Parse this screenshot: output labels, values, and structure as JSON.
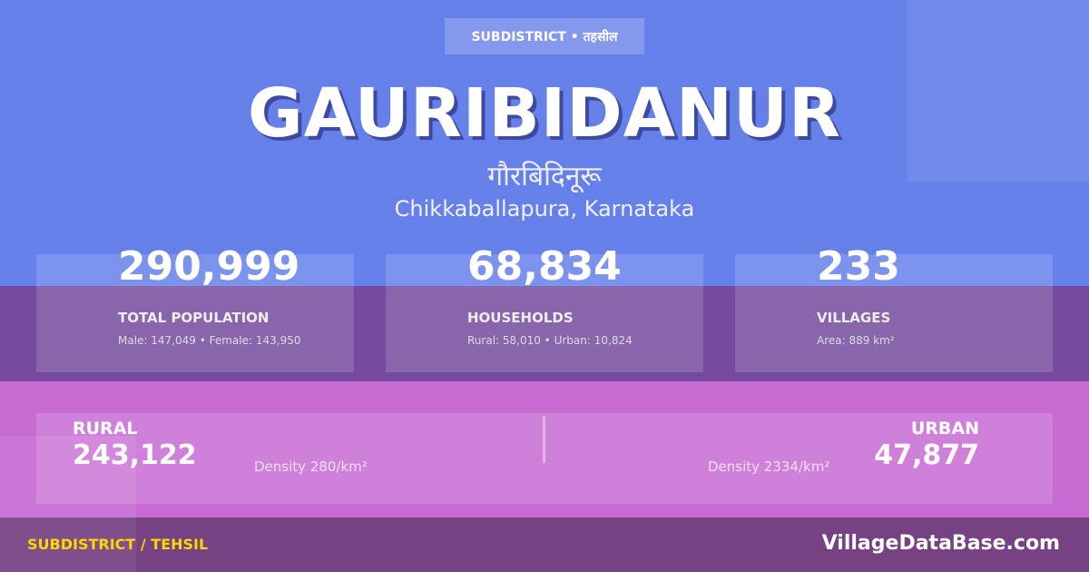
{
  "badge": "SUBDISTRICT • तहसील",
  "title": "GAURIBIDANUR",
  "native_name": "गौरबिदिनूरू",
  "location": "Chikkaballapura, Karnataka",
  "stats": [
    {
      "value": "290,999",
      "label": "TOTAL POPULATION",
      "sub": "Male: 147,049 • Female: 143,950"
    },
    {
      "value": "68,834",
      "label": "HOUSEHOLDS",
      "sub": "Rural: 58,010 • Urban: 10,824"
    },
    {
      "value": "233",
      "label": "VILLAGES",
      "sub": "Area: 889 km²"
    }
  ],
  "rural": {
    "label": "RURAL",
    "value": "243,122",
    "density": "Density 280/km²"
  },
  "urban": {
    "label": "URBAN",
    "value": "47,877",
    "density": "Density 2334/km²"
  },
  "footer": {
    "category": "SUBDISTRICT / TEHSIL",
    "brand": "VillageDataBase.com"
  },
  "colors": {
    "top": "#6680EA",
    "band": "#754A9E",
    "pink": "#C76BD3",
    "footer": "#764283",
    "accent": "#FFD700"
  }
}
